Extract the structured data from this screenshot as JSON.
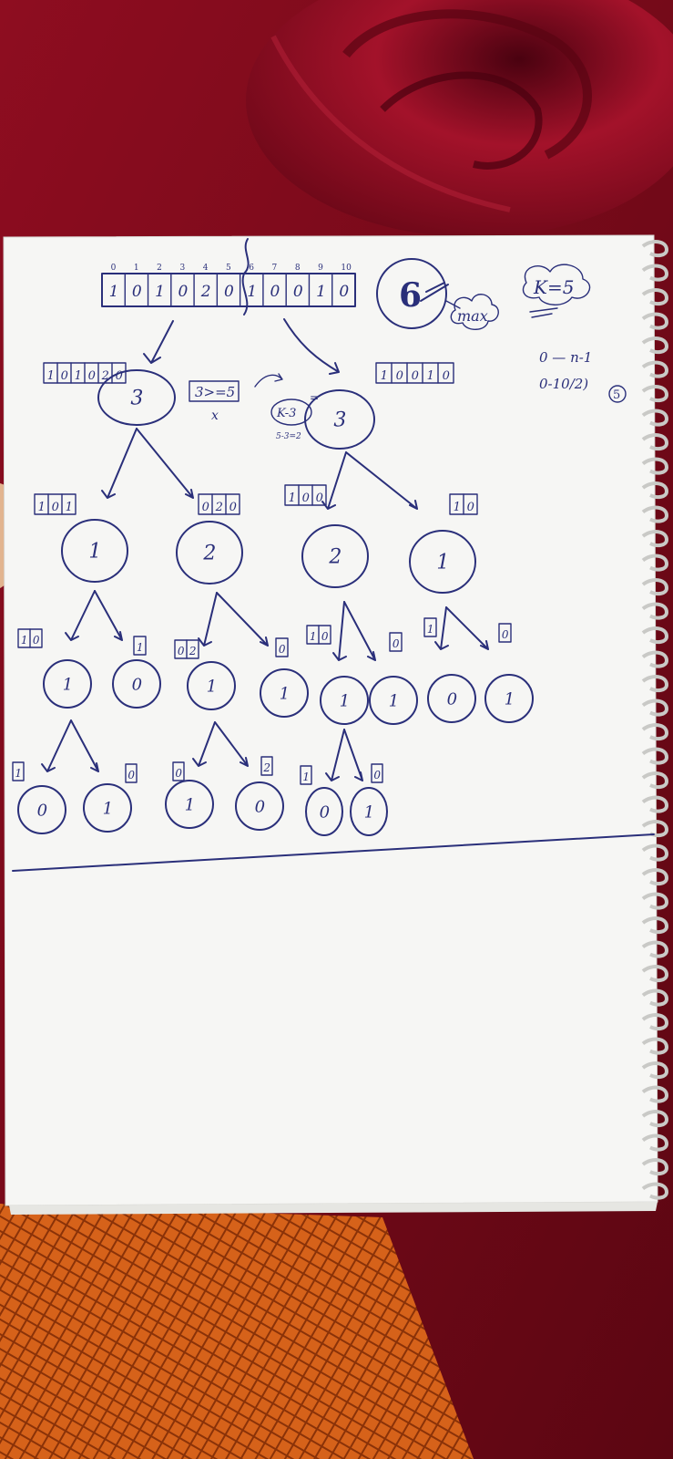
{
  "scene": {
    "description_label": "Handwritten notebook page with array partition recursion tree",
    "colors": {
      "background_red": "#7a0a1a",
      "rose": "#9c0d22",
      "paper": "#f7f7f5",
      "ink": "#2a2f7a",
      "cloth": "#d35a12"
    }
  },
  "notes": {
    "top_array": {
      "indices": [
        "0",
        "1",
        "2",
        "3",
        "4",
        "5",
        "6",
        "7",
        "8",
        "9",
        "10"
      ],
      "cells": [
        "1",
        "0",
        "1",
        "0",
        "2",
        "0",
        "1",
        "0",
        "0",
        "1",
        "0"
      ]
    },
    "circled_six": "6",
    "max_label": "max",
    "k_label": "K=5",
    "range_1": "0 — n-1",
    "range_2": "0-10/2)",
    "range_circled": "5",
    "condition": "3>=5",
    "condition_mark": "x",
    "k_minus": "K-3",
    "k_minus_sub": "5-3=2",
    "level1": {
      "left_array": [
        "1",
        "0",
        "1",
        "0",
        "2",
        "0"
      ],
      "right_array": [
        "1",
        "0",
        "0",
        "1",
        "0"
      ],
      "left_node": "3",
      "right_node": "3"
    },
    "level2": {
      "arrays": [
        [
          "1",
          "0",
          "1"
        ],
        [
          "0",
          "2",
          "0"
        ],
        [
          "1",
          "0",
          "0"
        ],
        [
          "1",
          "0"
        ]
      ],
      "nodes": [
        "1",
        "2",
        "2",
        "1"
      ]
    },
    "level3": {
      "arrays": [
        [
          "1",
          "0"
        ],
        [
          "1"
        ],
        [
          "0",
          "2"
        ],
        [
          "0"
        ],
        [
          "1",
          "0"
        ],
        [
          "0"
        ],
        [
          "1"
        ],
        [
          "0"
        ]
      ],
      "nodes": [
        "1",
        "0",
        "1",
        "1",
        "1",
        "1",
        "0",
        "1"
      ]
    },
    "level4": {
      "arrays": [
        [
          "1"
        ],
        [
          "0"
        ],
        [
          "0"
        ],
        [
          "2"
        ],
        [
          "1"
        ],
        [
          "0"
        ]
      ],
      "nodes": [
        "0",
        "1",
        "1",
        "0",
        "0",
        "1"
      ]
    }
  }
}
